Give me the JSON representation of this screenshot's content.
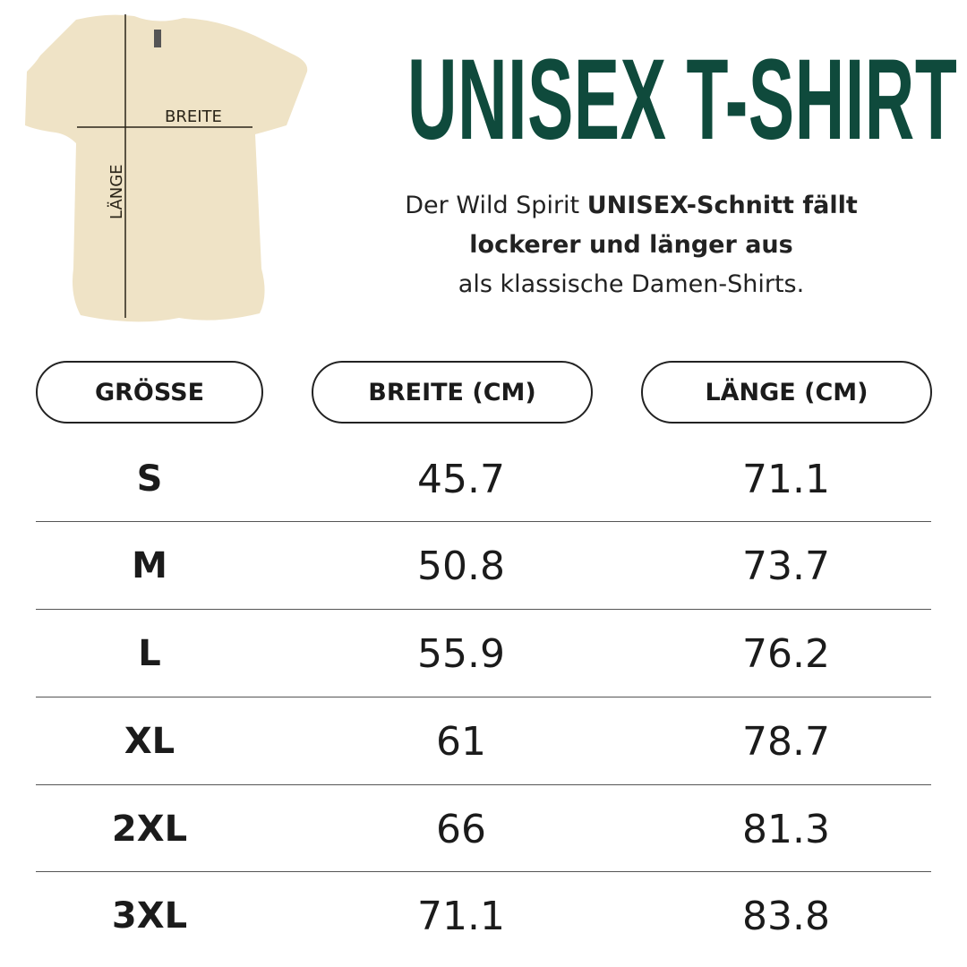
{
  "diagram": {
    "width_label": "BREITE",
    "length_label": "LÄNGE",
    "shirt_color": "#efe3c6"
  },
  "title": "UNISEX T-SHIRT",
  "description": {
    "part1": "Der Wild Spirit ",
    "bold1": "UNISEX-Schnitt fällt",
    "bold2": "lockerer und länger aus",
    "part2": "als klassische Damen-Shirts."
  },
  "table": {
    "headers": [
      "GRÖSSE",
      "BREITE (CM)",
      "LÄNGE (CM)"
    ],
    "rows": [
      [
        "S",
        "45.7",
        "71.1"
      ],
      [
        "M",
        "50.8",
        "73.7"
      ],
      [
        "L",
        "55.9",
        "76.2"
      ],
      [
        "XL",
        "61",
        "78.7"
      ],
      [
        "2XL",
        "66",
        "81.3"
      ],
      [
        "3XL",
        "71.1",
        "83.8"
      ]
    ]
  },
  "colors": {
    "title": "#0f4a3c",
    "text": "#1b1b1b"
  }
}
